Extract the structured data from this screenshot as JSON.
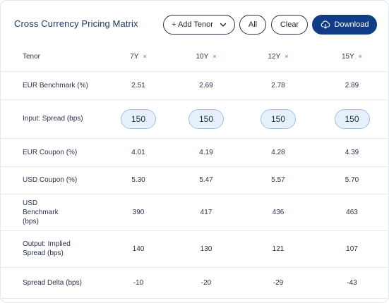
{
  "header": {
    "title": "Cross Currency Pricing Matrix",
    "add_tenor_label": "+ Add Tenor",
    "all_label": "All",
    "clear_label": "Clear",
    "download_label": "Download"
  },
  "table": {
    "tenor_header": "Tenor",
    "columns": [
      "7Y",
      "10Y",
      "12Y",
      "15Y"
    ],
    "remove_mark": "×",
    "rows": [
      {
        "label": "EUR Benchmark (%)",
        "values": [
          "2.51",
          "2.69",
          "2.78",
          "2.89"
        ]
      },
      {
        "label": "Input: Spread (bps)",
        "values": [
          "150",
          "150",
          "150",
          "150"
        ],
        "input": true
      },
      {
        "label": "EUR Coupon (%)",
        "values": [
          "4.01",
          "4.19",
          "4.28",
          "4.39"
        ]
      },
      {
        "label": "USD Coupon (%)",
        "values": [
          "5.30",
          "5.47",
          "5.57",
          "5.70"
        ]
      },
      {
        "label": "USD Benchmark (bps)",
        "values": [
          "390",
          "417",
          "436",
          "463"
        ]
      },
      {
        "label": "Output: Implied Spread (bps)",
        "values": [
          "140",
          "130",
          "121",
          "107"
        ]
      },
      {
        "label": "Spread Delta (bps)",
        "values": [
          "-10",
          "-20",
          "-29",
          "-43"
        ],
        "delta": true
      }
    ]
  },
  "colors": {
    "primary": "#0f3c84",
    "remove": "#e0455a",
    "delta": "#2e8b3a",
    "input_bg": "#e6f0fb"
  },
  "icons": {
    "chevron": "chevron-down-icon",
    "download": "cloud-download-icon",
    "remove": "close-icon"
  }
}
